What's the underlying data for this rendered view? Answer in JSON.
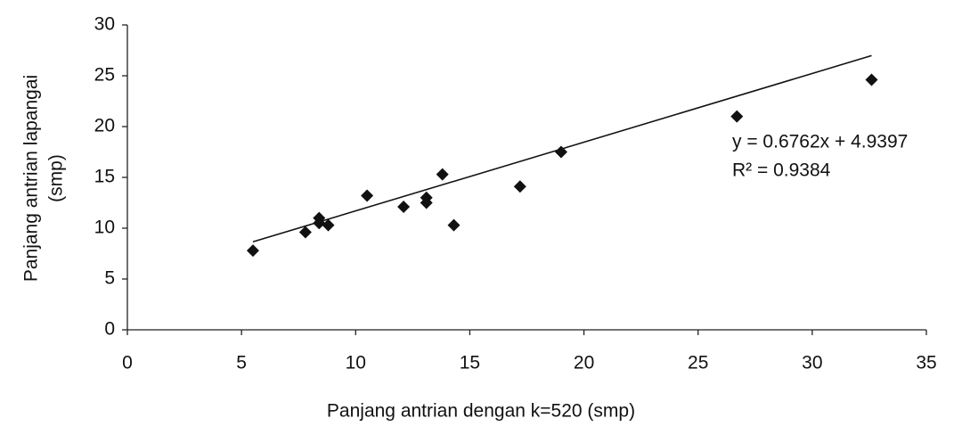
{
  "chart_data": {
    "type": "scatter",
    "x_label": "Panjang antrian  dengan k=520 (smp)",
    "y_label": [
      "Panjang antrian lapangai",
      "(smp)"
    ],
    "series": [
      {
        "color": "#111111",
        "x": [
          5.5,
          7.8,
          8.4,
          8.4,
          8.8,
          10.5,
          12.1,
          13.1,
          13.1,
          13.8,
          14.3,
          17.2,
          19.0,
          26.7,
          32.6
        ],
        "values": [
          7.8,
          9.6,
          11.0,
          10.5,
          10.3,
          13.2,
          12.1,
          13.0,
          12.5,
          15.3,
          10.3,
          14.1,
          17.5,
          21.0,
          24.6
        ]
      }
    ],
    "trendline": {
      "slope": 0.6762,
      "intercept": 4.9397
    },
    "annotations": [
      "y = 0.6762x + 4.9397",
      "R² = 0.9384"
    ],
    "xlim": [
      0,
      35
    ],
    "xticks": [
      0,
      5,
      10,
      15,
      20,
      25,
      30,
      35
    ],
    "ylim": [
      0,
      30
    ],
    "yticks": [
      0,
      5,
      10,
      15,
      20,
      25,
      30
    ],
    "grid": false
  }
}
